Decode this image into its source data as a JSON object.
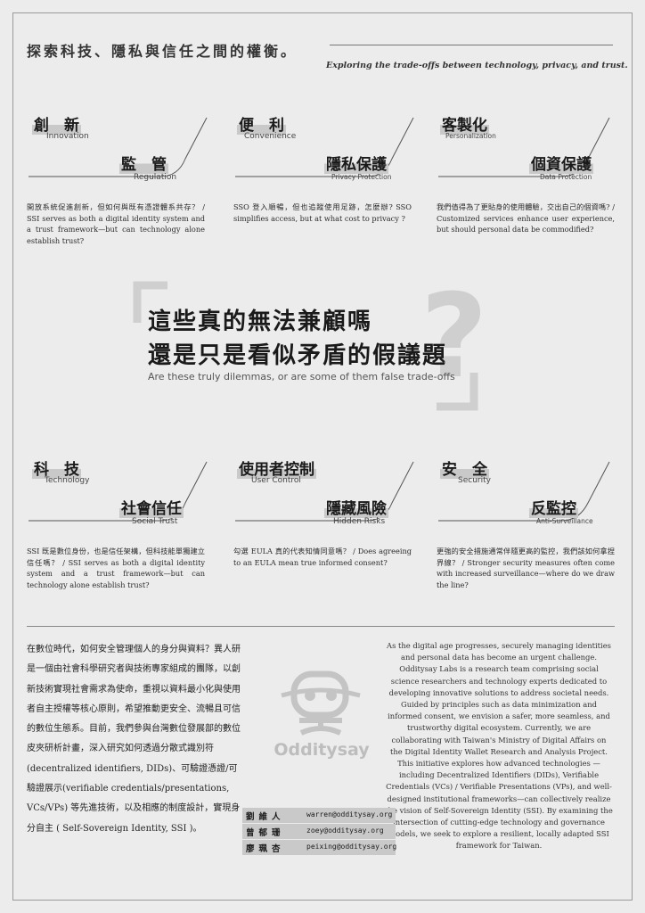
{
  "header": {
    "title_zh": "探索科技、隱私與信任之間的權衡。",
    "subtitle_en": "Exploring the trade-offs between technology, privacy, and trust."
  },
  "cards_top": [
    {
      "t1": "創　新",
      "t1_en": "Innovation",
      "t2": "監　管",
      "t2_en": "Regulation",
      "desc": "開放系統促進創新，但如何與既有憑證體系共存？ / SSI serves as both a digital identity system and a trust framework—but can technology alone establish trust?"
    },
    {
      "t1": "便　利",
      "t1_en": "Convenience",
      "t2": "隱私保護",
      "t2_en": "Privacy Protection",
      "desc": "SSO 登入順暢，但也追蹤使用足跡，怎麼辦? SSO simplifies access, but at what cost to privacy ?"
    },
    {
      "t1": "客製化",
      "t1_en": "Personalization",
      "t2": "個資保護",
      "t2_en": "Data Protection",
      "desc": "我們值得為了更貼身的使用體驗，交出自己的個資嗎? / Customized services enhance user experience, but should personal data be commodified?"
    }
  ],
  "question": {
    "line1": "這些真的無法兼顧嗎",
    "line2": "還是只是看似矛盾的假議題",
    "en": "Are these truly dilemmas, or are some of them false trade-offs",
    "mark": "?"
  },
  "cards_bottom": [
    {
      "t1": "科　技",
      "t1_en": "Technology",
      "t2": "社會信任",
      "t2_en": "Social Trust",
      "desc": "SSI 既是數位身份，也是信任架構，但科技能單獨建立信任嗎？ / SSI serves as both a digital identity system and a trust framework—but can technology alone establish trust?"
    },
    {
      "t1": "使用者控制",
      "t1_en": "User Control",
      "t2": "隱藏風險",
      "t2_en": "Hidden Risks",
      "desc": "勾選 EULA 真的代表知情同意嗎？ / Does agreeing to an EULA mean true informed consent?"
    },
    {
      "t1": "安　全",
      "t1_en": "Security",
      "t2": "反監控",
      "t2_en": "Anti-Surveillance",
      "desc": "更強的安全措施通常伴隨更高的監控，我們該如何拿捏界線？ / Stronger security measures often come with increased surveillance—where do we draw the line?"
    }
  ],
  "about": {
    "zh": "在數位時代，如何安全管理個人的身分與資料？異人研是一個由社會科學研究者與技術專家組成的團隊，以創新技術實現社會需求為使命，重視以資料最小化與使用者自主授權等核心原則，希望推動更安全、流暢且可信的數位生態系。目前，我們參與台灣數位發展部的數位皮夾研析計畫，深入研究如何透過分散式識別符 (decentralized identifiers, DIDs)、可驗證憑證/可驗證展示(verifiable credentials/presentations, VCs/VPs) 等先進技術，以及相應的制度設計，實現身分自主 ( Self-Sovereign Identity, SSI )。",
    "en": "As the digital age progresses, securely managing identities and personal data has become an urgent challenge. Odditysay Labs is a research team comprising social science researchers and technology experts dedicated to developing innovative solutions to address societal needs. Guided by principles such as data minimization and informed consent, we envision a safer, more seamless, and trustworthy digital ecosystem. Currently, we are collaborating with Taiwan's Ministry of Digital Affairs on the Digital Identity Wallet Research and Analysis Project. This initiative explores how advanced technologies — including Decentralized Identifiers (DIDs), Verifiable Credentials (VCs) / Verifiable Presentations (VPs), and well-designed institutional frameworks—can collectively realize the vision of Self-Sovereign Identity (SSI). By examining the intersection of cutting-edge technology and governance models, we seek to explore a resilient, locally adapted SSI framework for Taiwan."
  },
  "logo": {
    "text": "Odditysay"
  },
  "contacts": [
    {
      "name": "劉維人",
      "email": "warren@odditysay.org"
    },
    {
      "name": "曾郁珊",
      "email": "zoey@odditysay.org"
    },
    {
      "name": "廖珮杏",
      "email": "peixing@odditysay.org"
    }
  ]
}
